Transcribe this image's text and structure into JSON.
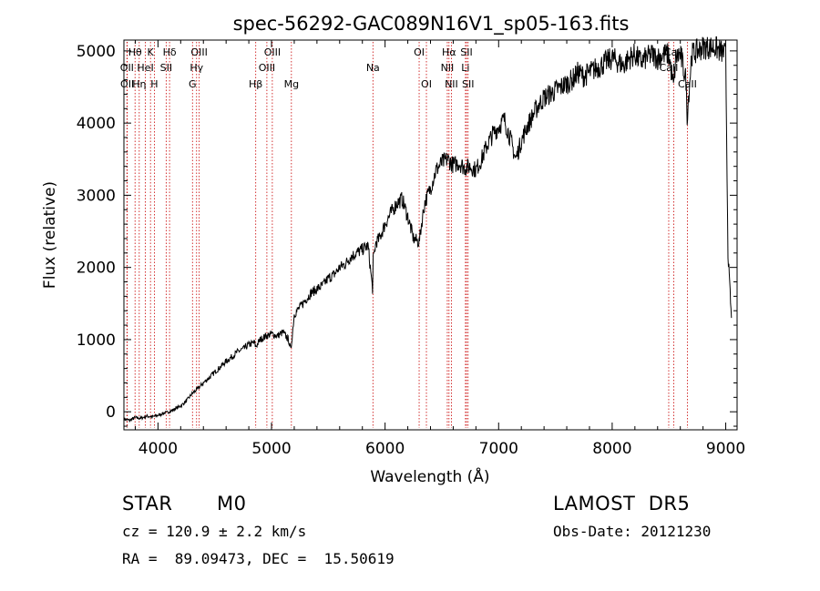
{
  "chart_data": {
    "type": "line",
    "title": "spec-56292-GAC089N16V1_sp05-163.fits",
    "xlabel": "Wavelength (Å)",
    "ylabel": "Flux (relative)",
    "xlim": [
      3700,
      9100
    ],
    "ylim": [
      -250,
      5150
    ],
    "xticks": [
      4000,
      5000,
      6000,
      7000,
      8000,
      9000
    ],
    "yticks": [
      0,
      1000,
      2000,
      3000,
      4000,
      5000
    ],
    "grid": false,
    "line_color": "#000000",
    "marker_color": "#c80000",
    "series": [
      {
        "x": [
          3700,
          3750,
          3800,
          3850,
          3900,
          3950,
          4000,
          4050,
          4100,
          4150,
          4200,
          4250,
          4300,
          4350,
          4400,
          4450,
          4500,
          4550,
          4600,
          4650,
          4700,
          4750,
          4800,
          4850,
          4860,
          4900,
          4950,
          5000,
          5050,
          5100,
          5150,
          5170,
          5200,
          5250,
          5300,
          5350,
          5400,
          5450,
          5500,
          5550,
          5600,
          5650,
          5700,
          5750,
          5800,
          5850,
          5890,
          5895,
          5920,
          5950,
          6000,
          6050,
          6100,
          6150,
          6200,
          6250,
          6300,
          6330,
          6350,
          6400,
          6450,
          6500,
          6550,
          6600,
          6650,
          6700,
          6750,
          6800,
          6850,
          6900,
          6950,
          7000,
          7050,
          7100,
          7150,
          7200,
          7250,
          7300,
          7350,
          7400,
          7450,
          7500,
          7550,
          7600,
          7650,
          7700,
          7750,
          7800,
          7850,
          7900,
          7950,
          8000,
          8050,
          8100,
          8150,
          8200,
          8250,
          8300,
          8350,
          8400,
          8450,
          8500,
          8540,
          8560,
          8600,
          8650,
          8660,
          8700,
          8750,
          8800,
          8850,
          8900,
          8950,
          9000,
          9020,
          9050
        ],
        "y": [
          -100,
          -120,
          -80,
          -90,
          -60,
          -70,
          -50,
          -20,
          0,
          40,
          80,
          150,
          250,
          320,
          400,
          470,
          550,
          620,
          700,
          760,
          830,
          870,
          930,
          960,
          900,
          1000,
          1050,
          1080,
          1050,
          1100,
          1000,
          850,
          1350,
          1450,
          1550,
          1650,
          1700,
          1750,
          1850,
          1900,
          2000,
          2050,
          2150,
          2200,
          2250,
          2300,
          1700,
          2100,
          2350,
          2400,
          2600,
          2750,
          2880,
          2950,
          2700,
          2400,
          2350,
          2700,
          2900,
          3100,
          3350,
          3450,
          3500,
          3420,
          3450,
          3380,
          3400,
          3350,
          3500,
          3700,
          3850,
          3950,
          4050,
          3800,
          3500,
          3750,
          3950,
          4100,
          4250,
          4350,
          4400,
          4450,
          4500,
          4550,
          4600,
          4700,
          4650,
          4700,
          4750,
          4800,
          4850,
          4900,
          4850,
          4800,
          4900,
          4950,
          4850,
          4900,
          4950,
          4900,
          4950,
          4950,
          4500,
          4900,
          4950,
          4600,
          4100,
          4950,
          5000,
          5050,
          5050,
          5050,
          5000,
          4950,
          2200,
          1300
        ]
      }
    ],
    "lines": [
      {
        "label": "Hθ",
        "x": 3798,
        "row": 0
      },
      {
        "label": "K",
        "x": 3934,
        "row": 0
      },
      {
        "label": "Hδ",
        "x": 4102,
        "row": 0
      },
      {
        "label": "OIII",
        "x": 4363,
        "row": 0
      },
      {
        "label": "OIII",
        "x": 5007,
        "row": 0
      },
      {
        "label": "OI",
        "x": 6300,
        "row": 0
      },
      {
        "label": "Hα",
        "x": 6563,
        "row": 0
      },
      {
        "label": "SII",
        "x": 6717,
        "row": 0
      },
      {
        "label": "CaII",
        "x": 8542,
        "row": 0
      },
      {
        "label": "OII",
        "x": 3727,
        "row": 1
      },
      {
        "label": "HeI",
        "x": 3889,
        "row": 1
      },
      {
        "label": "SII",
        "x": 4072,
        "row": 1
      },
      {
        "label": "Hγ",
        "x": 4340,
        "row": 1
      },
      {
        "label": "OIII",
        "x": 4959,
        "row": 1
      },
      {
        "label": "Na",
        "x": 5893,
        "row": 1
      },
      {
        "label": "NII",
        "x": 6548,
        "row": 1
      },
      {
        "label": "Li",
        "x": 6708,
        "row": 1
      },
      {
        "label": "CaII",
        "x": 8498,
        "row": 1
      },
      {
        "label": "OII",
        "x": 3729,
        "row": 2
      },
      {
        "label": "Hη",
        "x": 3835,
        "row": 2
      },
      {
        "label": "H",
        "x": 3968,
        "row": 2
      },
      {
        "label": "G",
        "x": 4304,
        "row": 2
      },
      {
        "label": "Hβ",
        "x": 4861,
        "row": 2
      },
      {
        "label": "Mg",
        "x": 5175,
        "row": 2
      },
      {
        "label": "OI",
        "x": 6364,
        "row": 2
      },
      {
        "label": "NII",
        "x": 6584,
        "row": 2
      },
      {
        "label": "SII",
        "x": 6731,
        "row": 2
      },
      {
        "label": "CaII",
        "x": 8662,
        "row": 2
      }
    ]
  },
  "info": {
    "class_label": "STAR",
    "subclass": "M0",
    "survey": "LAMOST  DR5",
    "cz": "cz = 120.9 ± 2.2 km/s",
    "obs_date": "Obs-Date: 20121230",
    "radec": "RA =  89.09473, DEC =  15.50619"
  }
}
